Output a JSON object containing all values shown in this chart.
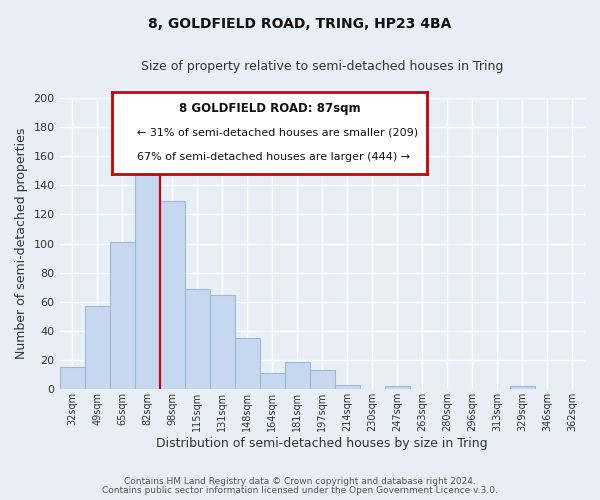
{
  "title": "8, GOLDFIELD ROAD, TRING, HP23 4BA",
  "subtitle": "Size of property relative to semi-detached houses in Tring",
  "xlabel": "Distribution of semi-detached houses by size in Tring",
  "ylabel": "Number of semi-detached properties",
  "bar_color": "#c5d8f0",
  "bar_edge_color": "#9bbad8",
  "background_color": "#e8eef6",
  "plot_bg_color": "#e8eef6",
  "grid_color": "#ffffff",
  "annotation_box_color": "#ffffff",
  "annotation_box_edge": "#cc0000",
  "vline_color": "#cc0000",
  "categories": [
    "32sqm",
    "49sqm",
    "65sqm",
    "82sqm",
    "98sqm",
    "115sqm",
    "131sqm",
    "148sqm",
    "164sqm",
    "181sqm",
    "197sqm",
    "214sqm",
    "230sqm",
    "247sqm",
    "263sqm",
    "280sqm",
    "296sqm",
    "313sqm",
    "329sqm",
    "346sqm",
    "362sqm"
  ],
  "values": [
    15,
    57,
    101,
    156,
    129,
    69,
    65,
    35,
    11,
    19,
    13,
    3,
    0,
    2,
    0,
    0,
    0,
    0,
    2,
    0,
    0
  ],
  "ylim": [
    0,
    200
  ],
  "yticks": [
    0,
    20,
    40,
    60,
    80,
    100,
    120,
    140,
    160,
    180,
    200
  ],
  "vline_x": 3.5,
  "annotation_text_line1": "8 GOLDFIELD ROAD: 87sqm",
  "annotation_text_line2": "← 31% of semi-detached houses are smaller (209)",
  "annotation_text_line3": "67% of semi-detached houses are larger (444) →",
  "footer_line1": "Contains HM Land Registry data © Crown copyright and database right 2024.",
  "footer_line2": "Contains public sector information licensed under the Open Government Licence v.3.0."
}
